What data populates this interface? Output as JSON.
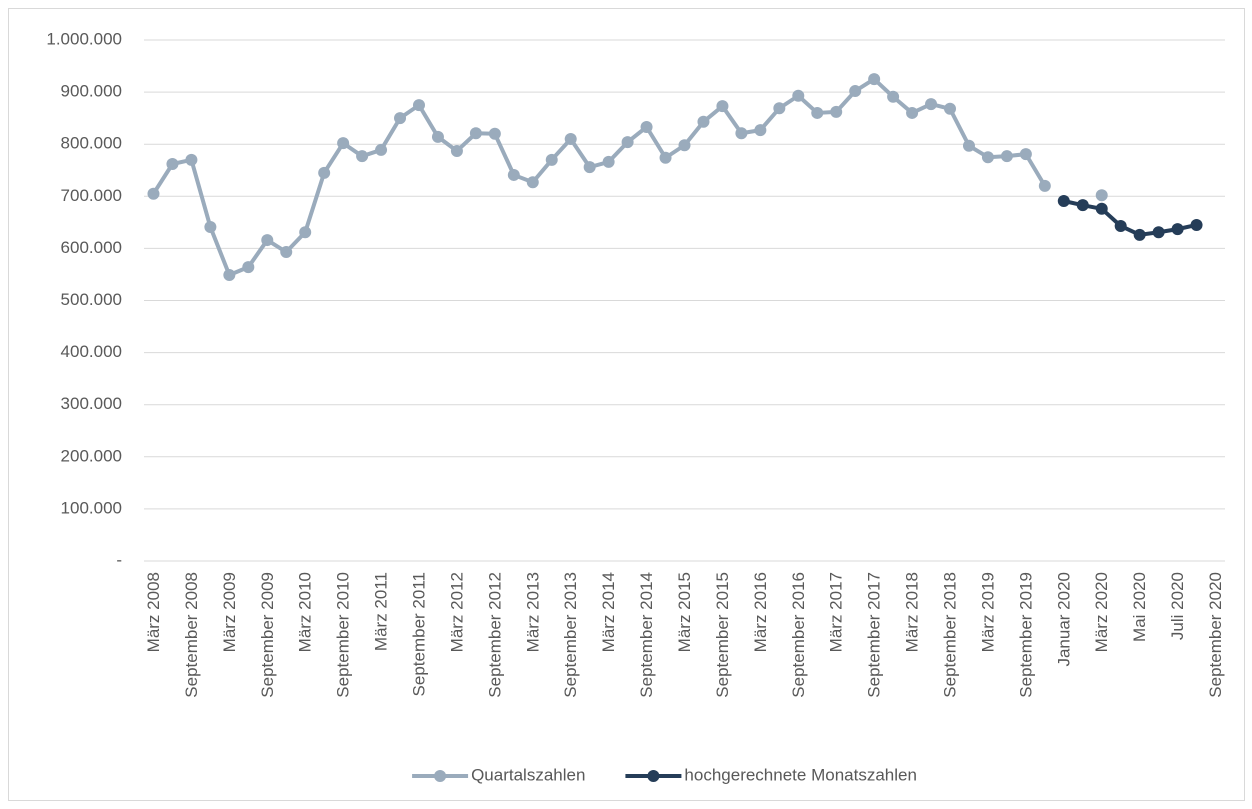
{
  "chart_data": {
    "type": "line",
    "categories": [
      "März 2008",
      null,
      "September 2008",
      null,
      "März 2009",
      null,
      "September 2009",
      null,
      "März 2010",
      null,
      "September 2010",
      null,
      "März 2011",
      null,
      "September 2011",
      null,
      "März 2012",
      null,
      "September 2012",
      null,
      "März 2013",
      null,
      "September 2013",
      null,
      "März 2014",
      null,
      "September 2014",
      null,
      "März 2015",
      null,
      "September 2015",
      null,
      "März 2016",
      null,
      "September 2016",
      null,
      "März 2017",
      null,
      "September 2017",
      null,
      "März 2018",
      null,
      "September 2018",
      null,
      "März 2019",
      null,
      "September 2019",
      null,
      "Januar 2020",
      null,
      "März 2020",
      null,
      "Mai 2020",
      null,
      "Juli 2020",
      null,
      "September 2020"
    ],
    "series": [
      {
        "name": "Quartalszahlen",
        "color": "#9aabbc",
        "values": [
          705000,
          762000,
          770000,
          641000,
          549000,
          564000,
          616000,
          593000,
          631000,
          745000,
          802000,
          777000,
          789000,
          850000,
          875000,
          814000,
          787000,
          821000,
          820000,
          741000,
          727000,
          770000,
          810000,
          756000,
          766000,
          804000,
          833000,
          774000,
          798000,
          843000,
          873000,
          821000,
          827000,
          869000,
          893000,
          860000,
          862000,
          902000,
          925000,
          891000,
          860000,
          877000,
          868000,
          797000,
          775000,
          777000,
          781000,
          720000,
          null,
          null,
          702000,
          null,
          null,
          null,
          null,
          null,
          null
        ]
      },
      {
        "name": "hochgerechnete Monatszahlen",
        "color": "#253d58",
        "values": [
          null,
          null,
          null,
          null,
          null,
          null,
          null,
          null,
          null,
          null,
          null,
          null,
          null,
          null,
          null,
          null,
          null,
          null,
          null,
          null,
          null,
          null,
          null,
          null,
          null,
          null,
          null,
          null,
          null,
          null,
          null,
          null,
          null,
          null,
          null,
          null,
          null,
          null,
          null,
          null,
          null,
          null,
          null,
          null,
          null,
          null,
          null,
          null,
          691000,
          683000,
          676000,
          643000,
          626000,
          631000,
          637000,
          645000,
          null
        ]
      }
    ],
    "ylim": [
      0,
      1000000
    ],
    "yticks": [
      {
        "value": 0,
        "label": "-"
      },
      {
        "value": 100000,
        "label": "100.000"
      },
      {
        "value": 200000,
        "label": "200.000"
      },
      {
        "value": 300000,
        "label": "300.000"
      },
      {
        "value": 400000,
        "label": "400.000"
      },
      {
        "value": 500000,
        "label": "500.000"
      },
      {
        "value": 600000,
        "label": "600.000"
      },
      {
        "value": 700000,
        "label": "700.000"
      },
      {
        "value": 800000,
        "label": "800.000"
      },
      {
        "value": 900000,
        "label": "900.000"
      },
      {
        "value": 1000000,
        "label": "1.000.000"
      }
    ],
    "grid": true,
    "legend": "bottom"
  }
}
